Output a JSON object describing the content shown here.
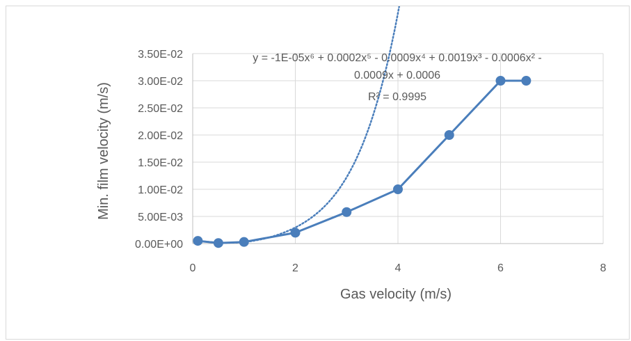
{
  "chart_data": {
    "type": "scatter",
    "xlabel": "Gas velocity (m/s)",
    "ylabel": "Min. film velocity (m/s)",
    "xlim": [
      0,
      8
    ],
    "ylim": [
      0,
      0.035
    ],
    "x_ticks": [
      0,
      2,
      4,
      6,
      8
    ],
    "x_tick_labels": [
      "0",
      "2",
      "4",
      "6",
      "8"
    ],
    "y_ticks": [
      0,
      0.005,
      0.01,
      0.015,
      0.02,
      0.025,
      0.03,
      0.035
    ],
    "y_tick_labels": [
      "0.00E+00",
      "5.00E-03",
      "1.00E-02",
      "1.50E-02",
      "2.00E-02",
      "2.50E-02",
      "3.00E-02",
      "3.50E-02"
    ],
    "grid": true,
    "series": [
      {
        "x": [
          0.1,
          0.5,
          1,
          2,
          3,
          4,
          5,
          6,
          6.5
        ],
        "y": [
          0.0005,
          0.0001,
          0.0003,
          0.002,
          0.0058,
          0.01,
          0.02,
          0.03,
          0.03
        ],
        "color": "#4a7ebb",
        "marker": "circle",
        "line": "solid"
      }
    ],
    "trendline": {
      "type": "polynomial",
      "order": 6,
      "style": "dotted",
      "color": "#4a7ebb",
      "coefficients": [
        0.0006,
        -0.0009,
        -0.0006,
        0.0019,
        -0.0009,
        0.0002,
        -1e-05
      ],
      "equation_line1": "y = -1E-05x⁶ + 0.0002x⁵ - 0.0009x⁴ + 0.0019x³ - 0.0006x² -",
      "equation_line2": "0.0009x + 0.0006",
      "r_squared": "R² = 0.9995"
    }
  }
}
